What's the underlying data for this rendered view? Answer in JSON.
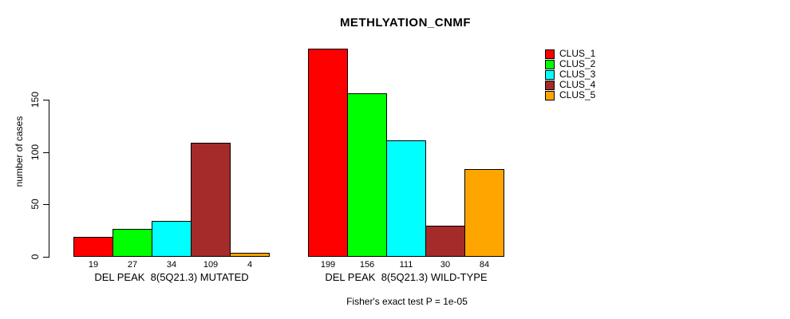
{
  "title": "METHLYATION_CNMF",
  "footnote": "Fisher's exact test P = 1e-05",
  "colors": {
    "clus_1": "#FF0000",
    "clus_2": "#00FF00",
    "clus_3": "#00FFFF",
    "clus_4": "#A52A2A",
    "clus_5": "#FFA500",
    "axis": "#000000",
    "background": "#FFFFFF"
  },
  "chart_data": {
    "type": "bar",
    "title": "METHLYATION_CNMF",
    "xlabel": "",
    "ylabel": "number of cases",
    "ylim": [
      0,
      150
    ],
    "yticks": [
      0,
      50,
      100,
      150
    ],
    "grid": false,
    "legend_position": "right",
    "categories": [
      "DEL PEAK  8(5Q21.3) MUTATED",
      "DEL PEAK  8(5Q21.3) WILD-TYPE"
    ],
    "series": [
      {
        "name": "CLUS_1",
        "color": "#FF0000",
        "values": [
          19,
          199
        ]
      },
      {
        "name": "CLUS_2",
        "color": "#00FF00",
        "values": [
          27,
          156
        ]
      },
      {
        "name": "CLUS_3",
        "color": "#00FFFF",
        "values": [
          34,
          111
        ]
      },
      {
        "name": "CLUS_4",
        "color": "#A52A2A",
        "values": [
          109,
          30
        ]
      },
      {
        "name": "CLUS_5",
        "color": "#FFA500",
        "values": [
          4,
          84
        ]
      }
    ],
    "bar_value_labels": [
      [
        "19",
        "27",
        "34",
        "109",
        "4"
      ],
      [
        "199",
        "156",
        "111",
        "30",
        "84"
      ]
    ]
  }
}
